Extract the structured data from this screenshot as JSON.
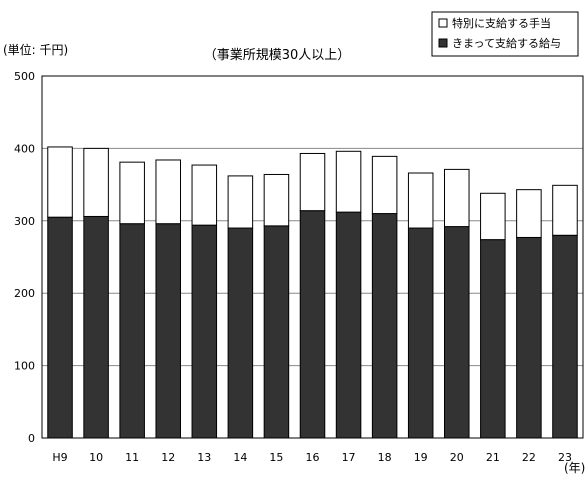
{
  "chart_data": {
    "type": "bar",
    "stacked": true,
    "title": "（事業所規模30人以上）",
    "unit_label": "(単位: 千円)",
    "xunit_label": "(年)",
    "categories": [
      "H9",
      "10",
      "11",
      "12",
      "13",
      "14",
      "15",
      "16",
      "17",
      "18",
      "19",
      "20",
      "21",
      "22",
      "23"
    ],
    "series": [
      {
        "name": "きまって支給する給与",
        "color": "#333333",
        "values": [
          305,
          306,
          296,
          296,
          294,
          290,
          293,
          314,
          312,
          310,
          290,
          292,
          274,
          277,
          280
        ]
      },
      {
        "name": "特別に支給する手当",
        "color": "#ffffff",
        "values": [
          97,
          94,
          85,
          88,
          83,
          72,
          71,
          79,
          84,
          79,
          76,
          79,
          64,
          66,
          69
        ]
      }
    ],
    "ylim": [
      0,
      500
    ],
    "yticks": [
      0,
      100,
      200,
      300,
      400,
      500
    ],
    "grid": true,
    "legend_position": "top-right"
  }
}
